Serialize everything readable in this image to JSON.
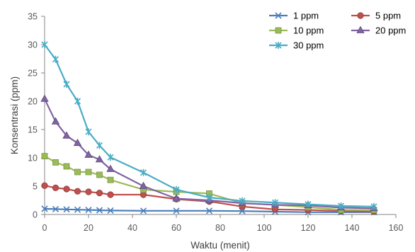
{
  "chart_data": {
    "type": "line",
    "title": "",
    "xlabel": "Waktu (menit)",
    "ylabel": "Konsentrasi (ppm)",
    "xlim": [
      0,
      160
    ],
    "ylim": [
      0,
      35
    ],
    "xticks": [
      0,
      20,
      40,
      60,
      80,
      100,
      120,
      140,
      160
    ],
    "yticks": [
      0,
      5,
      10,
      15,
      20,
      25,
      30,
      35
    ],
    "grid": false,
    "legend_position": "top-right",
    "series": [
      {
        "name": "1 ppm",
        "color": "#4A7EBB",
        "marker": "x",
        "x": [
          0,
          5,
          10,
          15,
          20,
          25,
          30,
          45,
          60,
          75,
          90,
          105,
          120,
          135,
          150
        ],
        "y": [
          1.0,
          0.95,
          0.9,
          0.85,
          0.8,
          0.75,
          0.7,
          0.65,
          0.65,
          0.65,
          0.6,
          0.5,
          0.4,
          0.4,
          0.4
        ]
      },
      {
        "name": "5 ppm",
        "color": "#C0504D",
        "marker": "circle",
        "x": [
          0,
          5,
          10,
          15,
          20,
          25,
          30,
          45,
          60,
          75,
          90,
          105,
          120,
          135,
          150
        ],
        "y": [
          5.1,
          4.7,
          4.5,
          4.1,
          4.0,
          3.8,
          3.5,
          3.5,
          2.7,
          2.3,
          1.4,
          0.9,
          0.8,
          0.6,
          0.5
        ]
      },
      {
        "name": "10 ppm",
        "color": "#9BBB59",
        "marker": "square",
        "x": [
          0,
          5,
          10,
          15,
          20,
          25,
          30,
          45,
          60,
          75,
          90,
          105,
          120,
          135,
          150
        ],
        "y": [
          10.3,
          9.2,
          8.5,
          7.5,
          7.5,
          7.0,
          6.1,
          4.4,
          4.0,
          3.7,
          2.0,
          1.7,
          1.3,
          0.8,
          0.8
        ]
      },
      {
        "name": "20 ppm",
        "color": "#8064A2",
        "marker": "triangle",
        "x": [
          0,
          5,
          10,
          15,
          20,
          25,
          30,
          45,
          60,
          75,
          90,
          105,
          120,
          135,
          150
        ],
        "y": [
          20.4,
          16.4,
          13.9,
          12.6,
          10.5,
          9.7,
          8.0,
          5.0,
          2.8,
          2.5,
          2.0,
          1.7,
          1.6,
          1.2,
          1.1
        ]
      },
      {
        "name": "30 ppm",
        "color": "#4BACC6",
        "marker": "star",
        "x": [
          0,
          5,
          10,
          15,
          20,
          25,
          30,
          45,
          60,
          75,
          90,
          105,
          120,
          135,
          150
        ],
        "y": [
          30.0,
          27.4,
          23.0,
          20.0,
          14.6,
          12.2,
          10.1,
          7.4,
          4.4,
          3.0,
          2.4,
          2.1,
          1.8,
          1.5,
          1.4
        ]
      }
    ]
  }
}
